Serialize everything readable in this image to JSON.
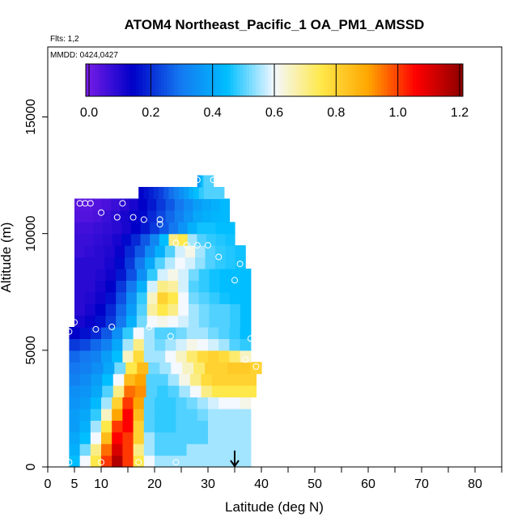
{
  "chart_data": {
    "type": "heatmap",
    "title": "ATOM4 Northeast_Pacific_1 OA_PM1_AMSSD",
    "flights_label": "Flts: 1,2",
    "mmdd_label": "MMDD: 0424,0427",
    "xlabel": "Latitude (deg N)",
    "ylabel": "Altitude (m)",
    "xlim": [
      0,
      85
    ],
    "ylim": [
      0,
      18000
    ],
    "x_ticks": [
      0,
      5,
      10,
      20,
      30,
      40,
      50,
      60,
      70,
      80
    ],
    "x_tick_labels": [
      "0",
      "5",
      "10",
      "20",
      "30",
      "40",
      "50",
      "60",
      "70",
      "80"
    ],
    "x_minor_ticks": [
      15,
      25,
      35,
      45,
      55,
      65,
      75,
      85
    ],
    "y_ticks": [
      0,
      5000,
      10000,
      15000
    ],
    "y_tick_labels": [
      "0",
      "5000",
      "10000",
      "15000"
    ],
    "colorbar": {
      "range": [
        0,
        1.2
      ],
      "ticks": [
        0.0,
        0.2,
        0.4,
        0.6,
        0.8,
        1.0,
        1.2
      ],
      "tick_labels": [
        "0.0",
        "0.2",
        "0.4",
        "0.6",
        "0.8",
        "1.0",
        "1.2"
      ],
      "colors": [
        "#7a1de8",
        "#0000c8",
        "#1478f0",
        "#00beff",
        "#f4f8ff",
        "#ffe84a",
        "#ffa500",
        "#ff0000",
        "#8c0000"
      ]
    },
    "rows": [
      {
        "alt": 250,
        "xmin": 4,
        "xmax": 38,
        "values": [
          0.45,
          0.6,
          0.75,
          1.0,
          1.15,
          1.0,
          0.75,
          0.6,
          0.55,
          0.55,
          0.55,
          0.55,
          0.55,
          0.55,
          0.55,
          0.55,
          0.55
        ]
      },
      {
        "alt": 750,
        "xmin": 4,
        "xmax": 38,
        "values": [
          0.42,
          0.52,
          0.7,
          0.95,
          1.1,
          1.0,
          0.7,
          0.55,
          0.5,
          0.5,
          0.5,
          0.55,
          0.55,
          0.55,
          0.55,
          0.55,
          0.55
        ]
      },
      {
        "alt": 1250,
        "xmin": 4,
        "xmax": 38,
        "values": [
          0.4,
          0.45,
          0.6,
          0.85,
          1.05,
          1.0,
          0.8,
          0.55,
          0.5,
          0.5,
          0.5,
          0.5,
          0.5,
          0.55,
          0.55,
          0.55,
          0.55
        ]
      },
      {
        "alt": 1750,
        "xmin": 4,
        "xmax": 38,
        "values": [
          0.38,
          0.42,
          0.55,
          0.75,
          1.0,
          1.05,
          0.8,
          0.5,
          0.48,
          0.48,
          0.5,
          0.5,
          0.5,
          0.55,
          0.55,
          0.55,
          0.55
        ]
      },
      {
        "alt": 2250,
        "xmin": 4,
        "xmax": 38,
        "values": [
          0.38,
          0.4,
          0.48,
          0.65,
          0.9,
          1.05,
          0.85,
          0.5,
          0.48,
          0.48,
          0.5,
          0.5,
          0.52,
          0.55,
          0.55,
          0.55,
          0.55
        ]
      },
      {
        "alt": 2750,
        "xmin": 4,
        "xmax": 38,
        "values": [
          0.36,
          0.38,
          0.44,
          0.55,
          0.8,
          1.0,
          0.9,
          0.5,
          0.48,
          0.48,
          0.5,
          0.52,
          0.55,
          0.58,
          0.6,
          0.6,
          0.62
        ]
      },
      {
        "alt": 3250,
        "xmin": 4,
        "xmax": 39,
        "values": [
          0.35,
          0.36,
          0.4,
          0.5,
          0.7,
          0.95,
          0.92,
          0.5,
          0.48,
          0.5,
          0.55,
          0.6,
          0.7,
          0.75,
          0.75,
          0.75,
          0.75
        ]
      },
      {
        "alt": 3750,
        "xmin": 4,
        "xmax": 39,
        "values": [
          0.32,
          0.34,
          0.38,
          0.45,
          0.6,
          0.85,
          0.9,
          0.5,
          0.5,
          0.55,
          0.62,
          0.7,
          0.78,
          0.8,
          0.8,
          0.8,
          0.8
        ]
      },
      {
        "alt": 4250,
        "xmin": 4,
        "xmax": 40,
        "values": [
          0.3,
          0.32,
          0.35,
          0.4,
          0.52,
          0.75,
          0.85,
          0.52,
          0.55,
          0.6,
          0.65,
          0.72,
          0.8,
          0.8,
          0.82,
          0.82,
          0.8
        ]
      },
      {
        "alt": 4750,
        "xmin": 4,
        "xmax": 38,
        "values": [
          0.28,
          0.3,
          0.32,
          0.38,
          0.45,
          0.65,
          0.78,
          0.55,
          0.55,
          0.6,
          0.65,
          0.72,
          0.78,
          0.8,
          0.78,
          0.72,
          0.65
        ]
      },
      {
        "alt": 5250,
        "xmin": 4,
        "xmax": 38,
        "values": [
          0.22,
          0.24,
          0.28,
          0.32,
          0.4,
          0.55,
          0.7,
          0.55,
          0.52,
          0.55,
          0.58,
          0.62,
          0.6,
          0.58,
          0.55,
          0.5,
          0.48
        ]
      },
      {
        "alt": 5750,
        "xmin": 4,
        "xmax": 38,
        "values": [
          0.15,
          0.17,
          0.2,
          0.26,
          0.35,
          0.48,
          0.6,
          0.55,
          0.5,
          0.5,
          0.52,
          0.55,
          0.55,
          0.52,
          0.5,
          0.48,
          0.45
        ]
      },
      {
        "alt": 6250,
        "xmin": 5,
        "xmax": 38,
        "values": [
          0.12,
          0.14,
          0.17,
          0.22,
          0.3,
          0.42,
          0.52,
          0.6,
          0.62,
          0.6,
          0.58,
          0.55,
          0.52,
          0.5,
          0.5,
          0.48,
          0.45
        ]
      },
      {
        "alt": 6750,
        "xmin": 5,
        "xmax": 38,
        "values": [
          0.1,
          0.12,
          0.15,
          0.2,
          0.28,
          0.38,
          0.5,
          0.68,
          0.75,
          0.7,
          0.6,
          0.55,
          0.52,
          0.5,
          0.5,
          0.48,
          0.45
        ]
      },
      {
        "alt": 7250,
        "xmin": 5,
        "xmax": 38,
        "values": [
          0.1,
          0.11,
          0.13,
          0.17,
          0.25,
          0.35,
          0.48,
          0.65,
          0.8,
          0.75,
          0.6,
          0.52,
          0.5,
          0.48,
          0.46,
          0.45,
          0.45
        ]
      },
      {
        "alt": 7750,
        "xmin": 5,
        "xmax": 38,
        "values": [
          0.1,
          0.1,
          0.12,
          0.15,
          0.22,
          0.3,
          0.42,
          0.58,
          0.7,
          0.68,
          0.58,
          0.5,
          0.48,
          0.46,
          0.45,
          0.45,
          0.45
        ]
      },
      {
        "alt": 8250,
        "xmin": 5,
        "xmax": 38,
        "values": [
          0.1,
          0.1,
          0.11,
          0.13,
          0.18,
          0.25,
          0.35,
          0.48,
          0.58,
          0.62,
          0.58,
          0.52,
          0.48,
          0.46,
          0.45,
          0.45,
          0.45
        ]
      },
      {
        "alt": 8750,
        "xmin": 5,
        "xmax": 37,
        "values": [
          0.1,
          0.1,
          0.1,
          0.12,
          0.16,
          0.22,
          0.3,
          0.4,
          0.5,
          0.56,
          0.6,
          0.58,
          0.54,
          0.5,
          0.48,
          0.47,
          0.46
        ]
      },
      {
        "alt": 9250,
        "xmin": 5,
        "xmax": 37,
        "values": [
          0.08,
          0.09,
          0.1,
          0.11,
          0.14,
          0.2,
          0.26,
          0.34,
          0.42,
          0.5,
          0.58,
          0.62,
          0.55,
          0.5,
          0.48,
          0.47,
          0.46
        ]
      },
      {
        "alt": 9750,
        "xmin": 5,
        "xmax": 35,
        "values": [
          0.08,
          0.08,
          0.09,
          0.1,
          0.12,
          0.16,
          0.2,
          0.26,
          0.33,
          0.45,
          0.7,
          0.75,
          0.55,
          0.5,
          0.48,
          0.47,
          0.46
        ]
      },
      {
        "alt": 10250,
        "xmin": 5,
        "xmax": 35,
        "values": [
          0.07,
          0.07,
          0.08,
          0.09,
          0.1,
          0.12,
          0.15,
          0.18,
          0.22,
          0.26,
          0.3,
          0.36,
          0.42,
          0.46,
          0.46,
          0.45,
          0.45
        ]
      },
      {
        "alt": 10750,
        "xmin": 5,
        "xmax": 34,
        "values": [
          0.05,
          0.05,
          0.06,
          0.08,
          0.1,
          0.12,
          0.14,
          0.16,
          0.2,
          0.24,
          0.28,
          0.32,
          0.36,
          0.4,
          0.42,
          0.43,
          0.44
        ]
      },
      {
        "alt": 11250,
        "xmin": 5,
        "xmax": 34,
        "values": [
          0.04,
          0.04,
          0.05,
          0.06,
          0.08,
          0.1,
          0.12,
          0.15,
          0.18,
          0.22,
          0.26,
          0.3,
          0.34,
          0.38,
          0.4,
          0.42,
          0.44
        ]
      },
      {
        "alt": 11750,
        "xmin": 17,
        "xmax": 33,
        "values": [
          0.15,
          0.17,
          0.19,
          0.21,
          0.23,
          0.26,
          0.29,
          0.32,
          0.35,
          0.38,
          0.42,
          0.45,
          0.48,
          0.5,
          0.5,
          0.5,
          0.5
        ]
      },
      {
        "alt": 12250,
        "xmin": 28,
        "xmax": 31,
        "values": [
          0.35,
          0.38,
          0.4,
          0.42,
          0.44,
          0.46,
          0.48,
          0.5,
          0.5,
          0.5,
          0.5,
          0.5,
          0.5,
          0.5,
          0.5,
          0.5,
          0.5
        ]
      }
    ],
    "sample_points": [
      [
        4,
        200
      ],
      [
        10,
        200
      ],
      [
        17,
        200
      ],
      [
        24,
        200
      ],
      [
        4,
        5800
      ],
      [
        5,
        6200
      ],
      [
        9,
        5900
      ],
      [
        12,
        6000
      ],
      [
        19,
        6000
      ],
      [
        23,
        5600
      ],
      [
        38,
        5500
      ],
      [
        37,
        4600
      ],
      [
        39,
        4300
      ],
      [
        6,
        11300
      ],
      [
        7,
        11300
      ],
      [
        8,
        11300
      ],
      [
        10,
        10900
      ],
      [
        14,
        11300
      ],
      [
        13,
        10700
      ],
      [
        16,
        10700
      ],
      [
        18,
        10600
      ],
      [
        21,
        10600
      ],
      [
        21,
        10400
      ],
      [
        24,
        9600
      ],
      [
        26,
        9500
      ],
      [
        28,
        9500
      ],
      [
        30,
        9500
      ],
      [
        32,
        9000
      ],
      [
        35,
        8000
      ],
      [
        36,
        8700
      ],
      [
        39,
        8400
      ],
      [
        28,
        12300
      ],
      [
        31,
        12300
      ]
    ],
    "arrow": {
      "lat": 35,
      "from_alt": 700,
      "to_alt": 0
    }
  }
}
